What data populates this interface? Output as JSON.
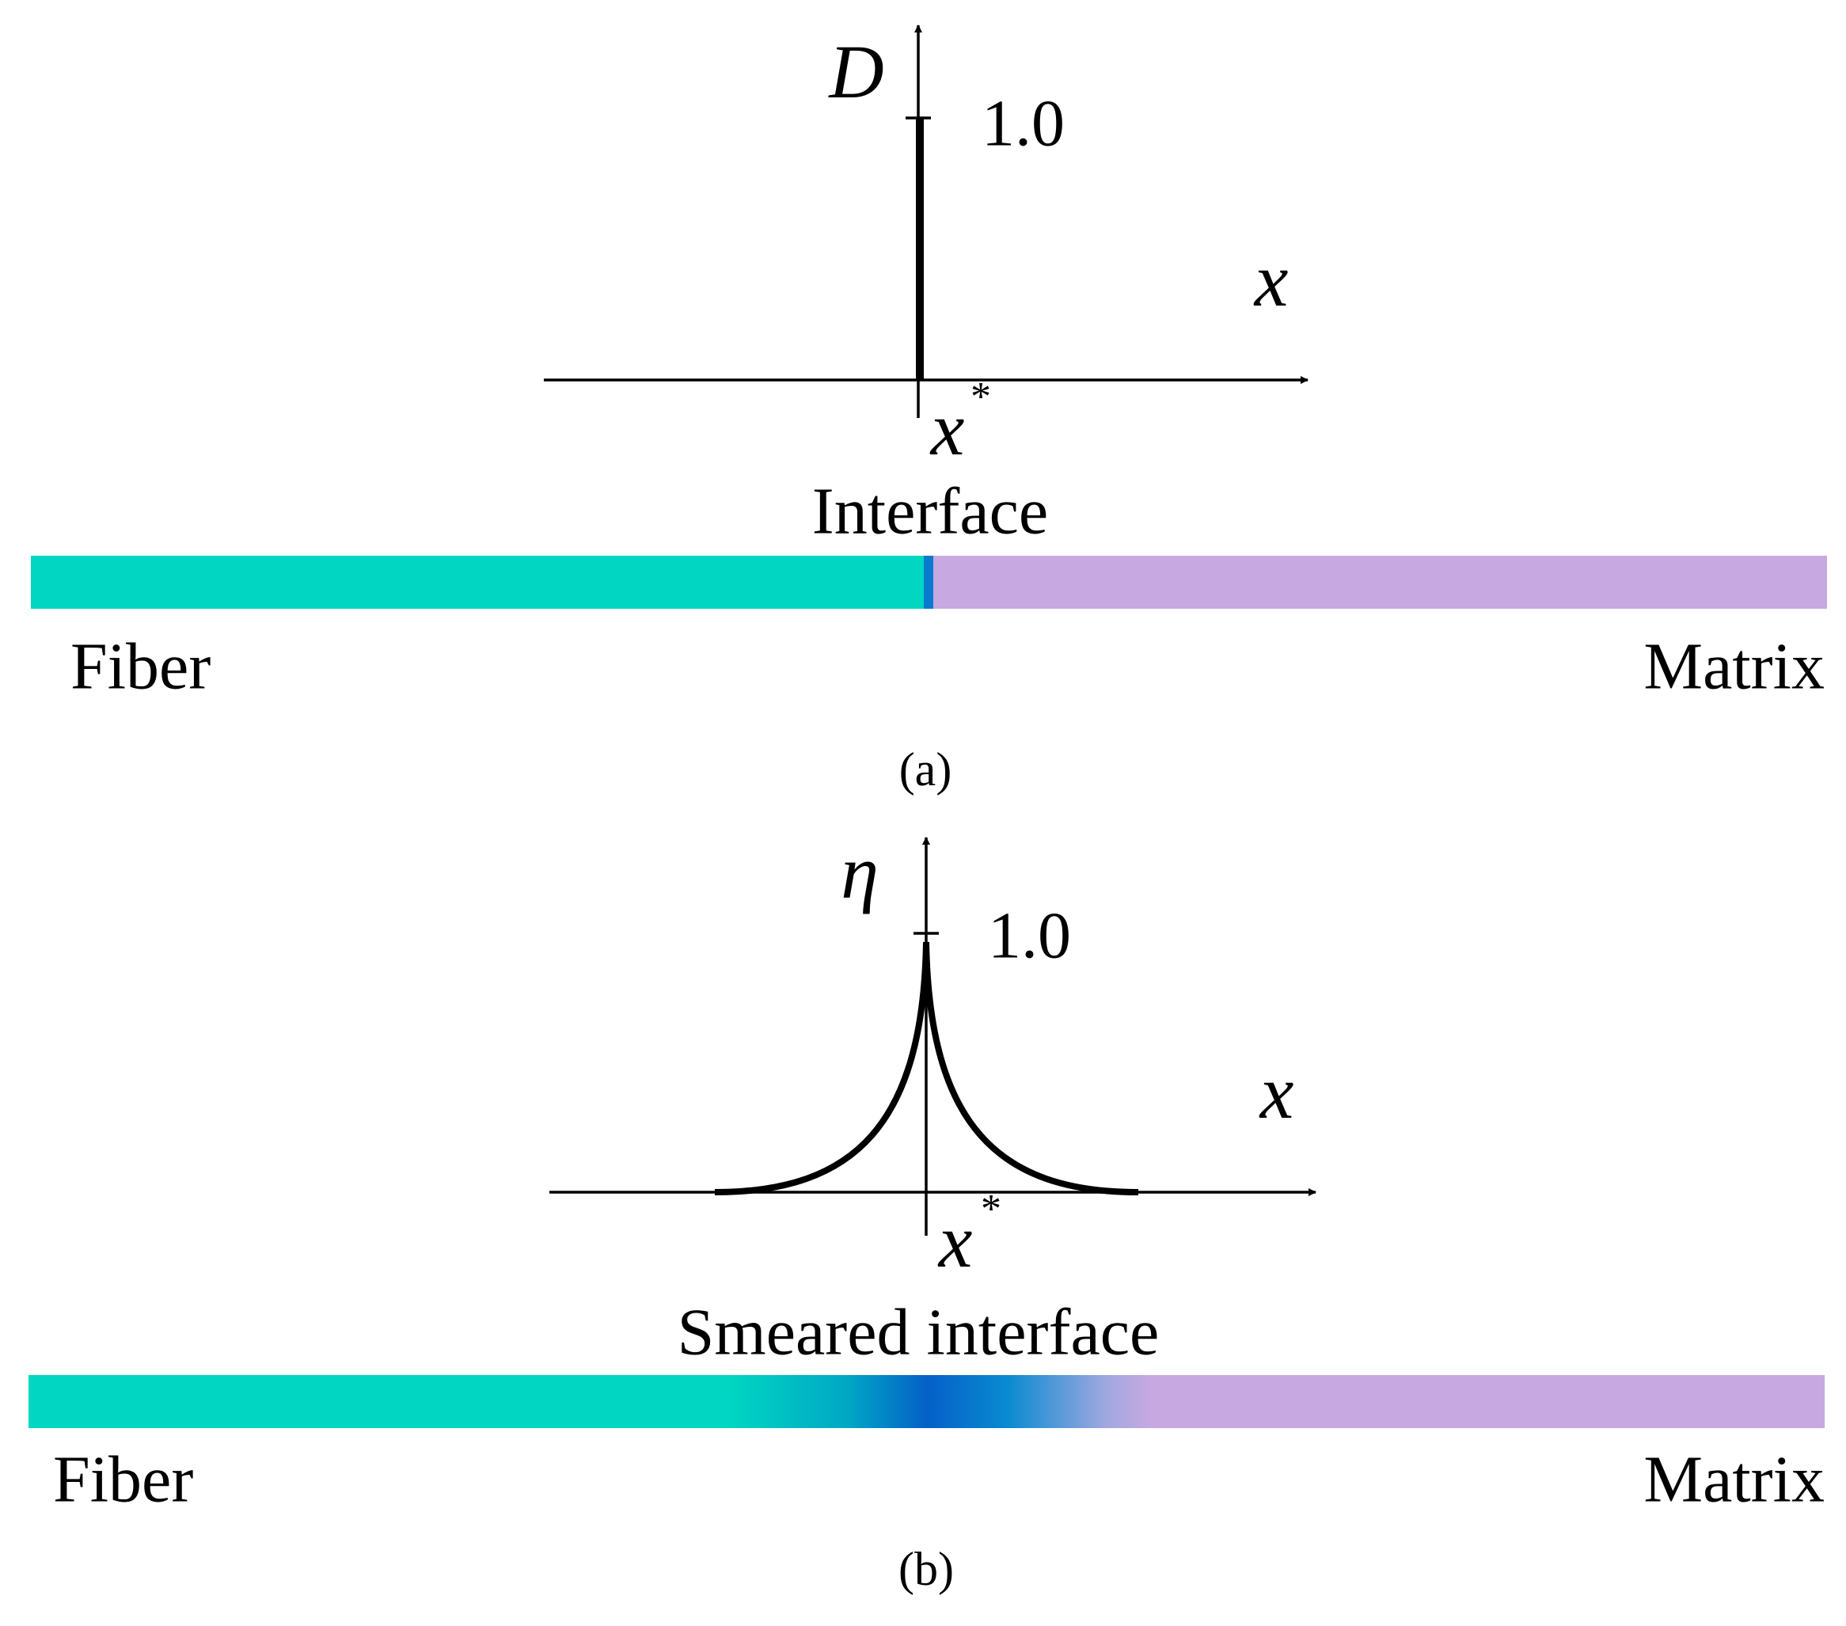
{
  "panels": [
    {
      "y_axis_label": "D",
      "tick_label": "1.0",
      "x_axis_label": "x",
      "x_star": {
        "base": "x",
        "sup": "*"
      },
      "interface_label": "Interface",
      "left_label": "Fiber",
      "right_label": "Matrix",
      "caption": "(a)"
    },
    {
      "y_axis_label": "η",
      "tick_label": "1.0",
      "x_axis_label": "x",
      "x_star": {
        "base": "x",
        "sup": "*"
      },
      "interface_label": "Smeared interface",
      "left_label": "Fiber",
      "right_label": "Matrix",
      "caption": "(b)"
    }
  ]
}
